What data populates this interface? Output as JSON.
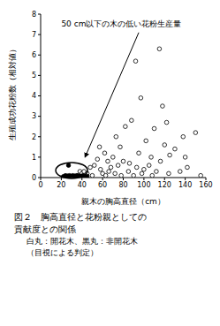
{
  "chart_data": {
    "type": "scatter",
    "title": "図２　胸高直径と花粉親としての貢献度との関係",
    "notes": [
      "白丸：開花木、黒丸：非開花木",
      "（目視による判定）"
    ],
    "annotation": "50 cm以下の木の低い花粉生産量",
    "x_label": "親木の胸高直径（cm）",
    "y_label": "生殖成功花粉数（相対値）",
    "xlim": [
      0,
      160
    ],
    "xticks": [
      0,
      20,
      40,
      60,
      80,
      100,
      120,
      140,
      160
    ],
    "ylim": [
      0,
      8
    ],
    "yticks": [
      0,
      1,
      2,
      3,
      4,
      5,
      6,
      7,
      8
    ],
    "grid": false,
    "series": [
      {
        "name": "開花木",
        "color": "#000000",
        "marker": "open_circle",
        "x": [
          36,
          38,
          40,
          42,
          45,
          48,
          50,
          52,
          55,
          57,
          58,
          60,
          62,
          63,
          65,
          66,
          68,
          70,
          72,
          73,
          75,
          77,
          78,
          80,
          82,
          85,
          86,
          88,
          90,
          92,
          93,
          95,
          97,
          98,
          100,
          102,
          105,
          107,
          108,
          110,
          112,
          115,
          116,
          118,
          120,
          122,
          124,
          125,
          130,
          135,
          138,
          140,
          142,
          150,
          155
        ],
        "values": [
          0.1,
          0.3,
          0.2,
          0.3,
          0.2,
          0.5,
          0.1,
          0.6,
          0.9,
          1.5,
          0.4,
          0.2,
          1.2,
          0.1,
          0.8,
          0.3,
          0.5,
          1.0,
          0.2,
          2.0,
          0.6,
          1.5,
          0.1,
          0.8,
          2.5,
          0.3,
          0.7,
          2.8,
          0.1,
          5.7,
          0.5,
          1.2,
          3.9,
          0.2,
          0.4,
          1.8,
          0.6,
          1.0,
          0.1,
          2.4,
          0.3,
          6.3,
          0.8,
          3.5,
          1.6,
          2.7,
          0.2,
          1.1,
          1.4,
          0.3,
          2.0,
          1.0,
          0.5,
          2.2,
          0.1
        ]
      },
      {
        "name": "非開花木",
        "color": "#000000",
        "marker": "filled_circle",
        "x": [
          22,
          24,
          25,
          26,
          27,
          27,
          28,
          29,
          30,
          31,
          32,
          33,
          34,
          35,
          36,
          37,
          38,
          39,
          40,
          41,
          43,
          45
        ],
        "values": [
          0.05,
          0.1,
          0.0,
          0.08,
          0.6,
          0.02,
          0.1,
          0.05,
          0.0,
          0.1,
          0.05,
          0.08,
          0.0,
          0.1,
          0.05,
          0.02,
          0.08,
          0.0,
          0.05,
          0.1,
          0.03,
          0.06
        ]
      }
    ]
  }
}
